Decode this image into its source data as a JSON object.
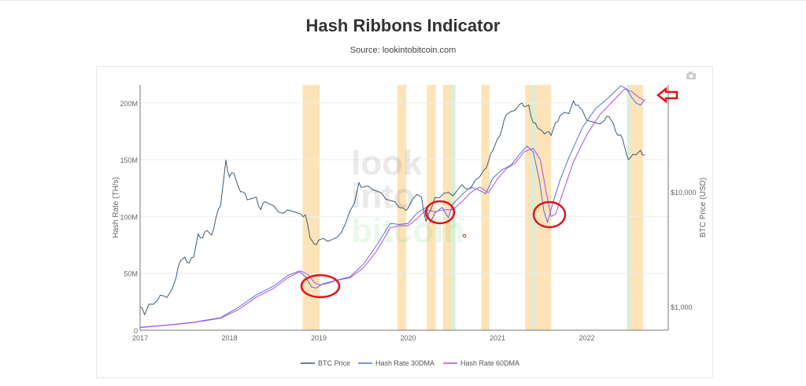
{
  "header": {
    "title": "Hash Ribbons Indicator",
    "source": "Source: lookintobitcoin.com"
  },
  "watermark": [
    "look",
    "into",
    "bitcoin"
  ],
  "chart_data": {
    "type": "line",
    "title": "Hash Ribbons Indicator",
    "ylabel": "Hash Rate (TH/s)",
    "y2label": "BTC Price (USD)",
    "xlim": [
      2017,
      2022.95
    ],
    "ylim": [
      0,
      215
    ],
    "y2lim_log": [
      650,
      70000
    ],
    "xticks": [
      {
        "v": 2017,
        "l": "2017"
      },
      {
        "v": 2018,
        "l": "2018"
      },
      {
        "v": 2019,
        "l": "2019"
      },
      {
        "v": 2020,
        "l": "2020"
      },
      {
        "v": 2021,
        "l": "2021"
      },
      {
        "v": 2022,
        "l": "2022"
      }
    ],
    "yticks": [
      {
        "v": 0,
        "l": "0"
      },
      {
        "v": 50,
        "l": "50M"
      },
      {
        "v": 100,
        "l": "100M"
      },
      {
        "v": 150,
        "l": "150M"
      },
      {
        "v": 200,
        "l": "200M"
      }
    ],
    "y2ticks": [
      {
        "v": 1000,
        "l": "$1,000"
      },
      {
        "v": 10000,
        "l": "$10,000"
      }
    ],
    "bands": [
      {
        "from": 2018.82,
        "to": 2019.01,
        "color": "orange"
      },
      {
        "from": 2019.88,
        "to": 2019.98,
        "color": "orange"
      },
      {
        "from": 2020.21,
        "to": 2020.31,
        "color": "orange"
      },
      {
        "from": 2020.39,
        "to": 2020.49,
        "color": "orange"
      },
      {
        "from": 2020.49,
        "to": 2020.53,
        "color": "green"
      },
      {
        "from": 2020.82,
        "to": 2020.91,
        "color": "orange"
      },
      {
        "from": 2021.31,
        "to": 2021.6,
        "color": "orange"
      },
      {
        "from": 2021.38,
        "to": 2021.42,
        "color": "green"
      },
      {
        "from": 2022.45,
        "to": 2022.63,
        "color": "orange"
      },
      {
        "from": 2022.45,
        "to": 2022.49,
        "color": "green"
      }
    ],
    "series": [
      {
        "name": "BTC Price",
        "axis": "y2",
        "color": "#3d5a73",
        "x": [
          2017,
          2017.05,
          2017.1,
          2017.2,
          2017.25,
          2017.3,
          2017.4,
          2017.45,
          2017.5,
          2017.55,
          2017.6,
          2017.65,
          2017.7,
          2017.75,
          2017.8,
          2017.85,
          2017.9,
          2017.96,
          2018.0,
          2018.05,
          2018.1,
          2018.15,
          2018.2,
          2018.3,
          2018.35,
          2018.4,
          2018.5,
          2018.6,
          2018.7,
          2018.8,
          2018.85,
          2018.9,
          2018.95,
          2019.0,
          2019.1,
          2019.2,
          2019.3,
          2019.4,
          2019.45,
          2019.5,
          2019.6,
          2019.7,
          2019.8,
          2019.9,
          2019.95,
          2020.0,
          2020.1,
          2020.15,
          2020.2,
          2020.25,
          2020.3,
          2020.4,
          2020.5,
          2020.6,
          2020.7,
          2020.8,
          2020.85,
          2020.9,
          2020.95,
          2021.0,
          2021.05,
          2021.1,
          2021.15,
          2021.25,
          2021.3,
          2021.35,
          2021.4,
          2021.45,
          2021.5,
          2021.55,
          2021.6,
          2021.65,
          2021.7,
          2021.8,
          2021.85,
          2021.9,
          2022.0,
          2022.1,
          2022.2,
          2022.25,
          2022.3,
          2022.35,
          2022.4,
          2022.45,
          2022.48,
          2022.55,
          2022.6,
          2022.65
        ],
        "y": [
          1000,
          850,
          1050,
          1150,
          1250,
          1200,
          1750,
          2500,
          2700,
          2400,
          2700,
          4300,
          4000,
          4600,
          4200,
          6000,
          7500,
          19000,
          13500,
          14500,
          11000,
          10000,
          8500,
          9000,
          7000,
          8200,
          7500,
          6500,
          6800,
          6400,
          6300,
          4000,
          3500,
          3800,
          3700,
          4000,
          5300,
          8000,
          12000,
          11000,
          10500,
          9800,
          8400,
          7300,
          7200,
          7200,
          9500,
          9000,
          5500,
          6800,
          8900,
          9700,
          9200,
          11500,
          10700,
          13500,
          15500,
          18500,
          23000,
          29000,
          35000,
          47000,
          50000,
          58000,
          55000,
          57000,
          40000,
          36000,
          34000,
          33000,
          31000,
          40000,
          46000,
          48000,
          62000,
          57000,
          42000,
          40000,
          42000,
          45000,
          39000,
          31000,
          29000,
          20500,
          19500,
          21000,
          23000,
          21000
        ]
      },
      {
        "name": "Hash Rate 30DMA",
        "axis": "y",
        "color": "#5470de",
        "x": [
          2017,
          2017.3,
          2017.6,
          2017.9,
          2018.1,
          2018.3,
          2018.5,
          2018.65,
          2018.78,
          2018.85,
          2018.92,
          2018.97,
          2019.05,
          2019.2,
          2019.35,
          2019.5,
          2019.65,
          2019.8,
          2019.9,
          2020.0,
          2020.1,
          2020.2,
          2020.25,
          2020.3,
          2020.38,
          2020.45,
          2020.5,
          2020.6,
          2020.7,
          2020.8,
          2020.87,
          2020.95,
          2021.05,
          2021.15,
          2021.25,
          2021.33,
          2021.4,
          2021.47,
          2021.52,
          2021.56,
          2021.62,
          2021.7,
          2021.8,
          2021.95,
          2022.1,
          2022.25,
          2022.38,
          2022.45,
          2022.5,
          2022.55,
          2022.6,
          2022.65
        ],
        "y": [
          2.5,
          4.5,
          7,
          11,
          20,
          31,
          39,
          48,
          52,
          47,
          38,
          37,
          41,
          44,
          47,
          58,
          75,
          94,
          93,
          94,
          103,
          108,
          95,
          103,
          108,
          99,
          111,
          119,
          126,
          123,
          120,
          134,
          141,
          145,
          155,
          162,
          157,
          132,
          105,
          95,
          112,
          132,
          152,
          178,
          195,
          205,
          215,
          212,
          205,
          200,
          198,
          203
        ]
      },
      {
        "name": "Hash Rate 60DMA",
        "axis": "y",
        "color": "#b04ee6",
        "x": [
          2017,
          2017.3,
          2017.6,
          2017.9,
          2018.1,
          2018.3,
          2018.5,
          2018.65,
          2018.8,
          2018.88,
          2018.95,
          2019.0,
          2019.1,
          2019.2,
          2019.35,
          2019.5,
          2019.65,
          2019.8,
          2019.9,
          2020.0,
          2020.1,
          2020.2,
          2020.3,
          2020.4,
          2020.5,
          2020.6,
          2020.7,
          2020.8,
          2020.9,
          2021.0,
          2021.1,
          2021.2,
          2021.3,
          2021.4,
          2021.48,
          2021.55,
          2021.6,
          2021.65,
          2021.75,
          2021.85,
          2022.0,
          2022.15,
          2022.3,
          2022.42,
          2022.5,
          2022.58,
          2022.65
        ],
        "y": [
          2.3,
          4.3,
          6.8,
          10.5,
          18,
          29,
          37,
          46,
          52,
          49,
          42,
          40,
          41,
          44,
          46,
          55,
          70,
          90,
          92,
          92,
          98,
          106,
          104,
          106,
          106,
          113,
          121,
          126,
          121,
          133,
          142,
          147,
          157,
          160,
          150,
          120,
          100,
          102,
          125,
          148,
          172,
          190,
          202,
          212,
          210,
          205,
          202
        ]
      }
    ]
  },
  "annotations": {
    "arrow": "red-arrow",
    "circles": 3
  }
}
